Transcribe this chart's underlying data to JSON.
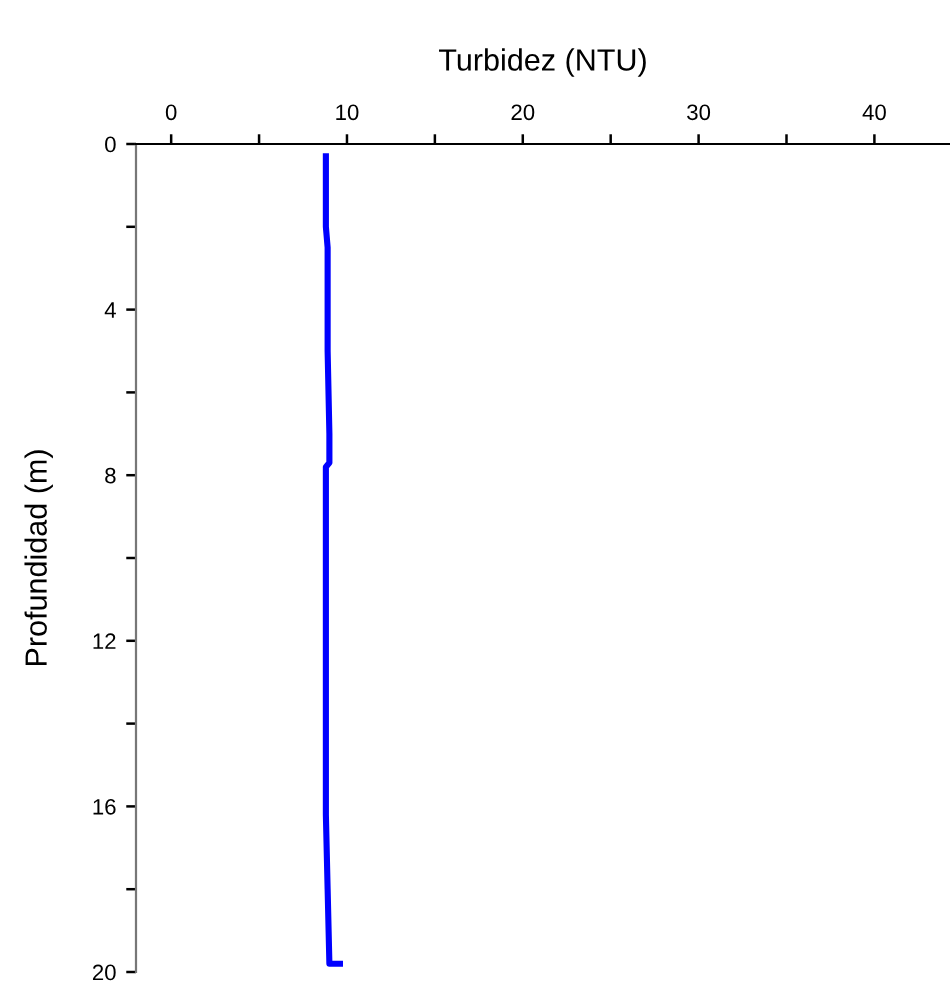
{
  "chart_data": {
    "type": "line",
    "xlabel": "Turbidez (NTU)",
    "ylabel": "Profundidad (m)",
    "xlim": [
      -2,
      44.3
    ],
    "ylim": [
      20,
      0
    ],
    "xticks": [
      0,
      {
        "value": 5,
        "label": null
      },
      10,
      {
        "value": 15,
        "label": null
      },
      20,
      {
        "value": 25,
        "label": null
      },
      30,
      {
        "value": 35,
        "label": null
      },
      40
    ],
    "yticks": [
      0,
      {
        "value": 2,
        "label": null
      },
      4,
      {
        "value": 6,
        "label": null
      },
      8,
      {
        "value": 10,
        "label": null
      },
      12,
      {
        "value": 14,
        "label": null
      },
      16,
      {
        "value": 18,
        "label": null
      },
      20
    ],
    "grid": false,
    "marker": "none",
    "line_style": "solid",
    "series": [
      {
        "color": "#0000ff",
        "x": [
          8.8,
          8.8,
          8.9,
          8.9,
          9.0,
          9.0,
          8.8,
          8.8,
          8.8,
          8.9,
          9.0,
          9.6
        ],
        "values": [
          0.3,
          2.0,
          2.5,
          5.0,
          7.0,
          7.7,
          7.8,
          12.0,
          16.2,
          18.0,
          19.8,
          19.8
        ]
      }
    ]
  }
}
